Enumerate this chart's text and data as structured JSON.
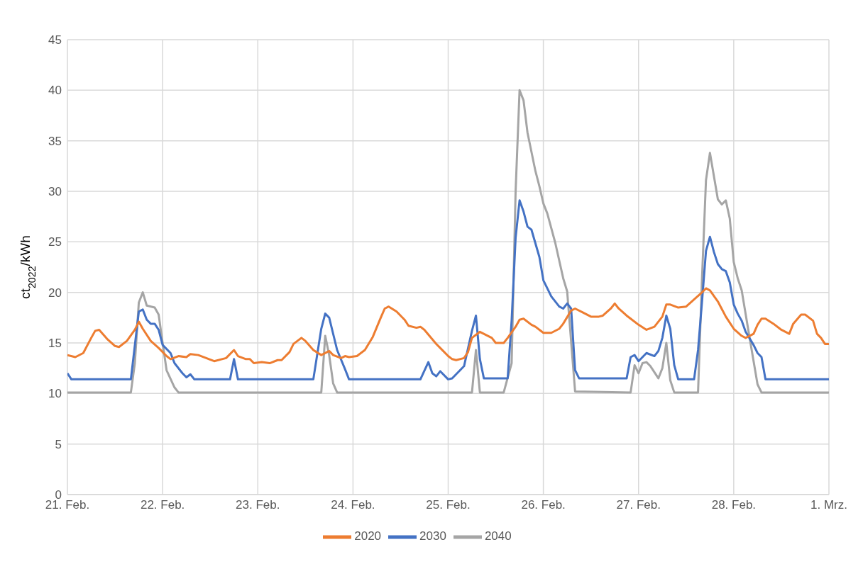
{
  "chart_data": {
    "type": "line",
    "ylabel": "ct$_{2022}$/kWh",
    "xlim": [
      "--02-21",
      "--03-01"
    ],
    "xticks": [
      {
        "value": "--02-21",
        "label": "21. Feb."
      },
      {
        "value": "--02-22",
        "label": "22. Feb."
      },
      {
        "value": "--02-23",
        "label": "23. Feb."
      },
      {
        "value": "--02-24",
        "label": "24. Feb."
      },
      {
        "value": "--02-25",
        "label": "25. Feb."
      },
      {
        "value": "--02-26",
        "label": "26. Feb."
      },
      {
        "value": "--02-27",
        "label": "27. Feb."
      },
      {
        "value": "--02-28",
        "label": "28. Feb."
      },
      {
        "value": "--03-01",
        "label": "1. Mrz."
      }
    ],
    "ylim": [
      0,
      45
    ],
    "yticks": [
      0,
      5,
      10,
      15,
      20,
      25,
      30,
      35,
      40,
      45
    ],
    "grid": true,
    "legend": "bottom",
    "marker": "none",
    "line_style": "solid",
    "series": [
      {
        "name": "2040",
        "color": "#a5a5a5",
        "x": [
          "--02-21T00:00",
          "--02-21T16:00",
          "--02-21T17:00",
          "--02-21T18:00",
          "--02-21T19:00",
          "--02-21T20:00",
          "--02-21T22:00",
          "--02-21T23:00",
          "--02-22T00:00",
          "--02-22T01:00",
          "--02-22T03:00",
          "--02-22T04:00",
          "--02-23T16:00",
          "--02-23T17:00",
          "--02-23T18:00",
          "--02-23T19:00",
          "--02-23T20:00",
          "--02-25T06:00",
          "--02-25T07:00",
          "--02-25T08:00",
          "--02-25T14:00",
          "--02-25T16:00",
          "--02-25T17:00",
          "--02-25T18:00",
          "--02-25T19:00",
          "--02-25T20:00",
          "--02-25T22:00",
          "--02-25T23:00",
          "--02-26T00:00",
          "--02-26T01:00",
          "--02-26T03:00",
          "--02-26T05:00",
          "--02-26T06:00",
          "--02-26T08:00",
          "--02-26T22:00",
          "--02-26T23:00",
          "--02-27T00:00",
          "--02-27T01:00",
          "--02-27T02:00",
          "--02-27T03:00",
          "--02-27T05:00",
          "--02-27T06:00",
          "--02-27T07:00",
          "--02-27T08:00",
          "--02-27T09:00",
          "--02-27T15:00",
          "--02-27T16:00",
          "--02-27T17:00",
          "--02-27T18:00",
          "--02-27T20:00",
          "--02-27T21:00",
          "--02-27T22:00",
          "--02-27T23:00",
          "--02-28T00:00",
          "--02-28T01:00",
          "--02-28T02:00",
          "--02-28T04:00",
          "--02-28T06:00",
          "--02-28T07:00",
          "--03-01T00:00"
        ],
        "values": [
          10.1,
          10.1,
          13,
          19,
          20,
          18.7,
          18.5,
          17.8,
          15,
          12.3,
          10.6,
          10.1,
          10.1,
          15.7,
          13.8,
          11,
          10.1,
          10.1,
          14.3,
          10.1,
          10.1,
          13,
          30,
          40,
          39,
          35.8,
          32,
          30.5,
          28.8,
          27.8,
          24.9,
          21.4,
          20.1,
          10.2,
          10.1,
          12.8,
          12,
          13,
          13.1,
          12.7,
          11.5,
          12.5,
          15,
          11.3,
          10.1,
          10.1,
          21.4,
          31.1,
          33.8,
          29.2,
          28.7,
          29.1,
          27.3,
          23,
          21.4,
          20.2,
          15.5,
          10.9,
          10.1,
          10.1
        ]
      },
      {
        "name": "2030",
        "color": "#4472c4",
        "x": [
          "--02-21T00:00",
          "--02-21T01:00",
          "--02-21T16:00",
          "--02-21T18:00",
          "--02-21T19:00",
          "--02-21T20:00",
          "--02-21T21:00",
          "--02-21T22:00",
          "--02-21T23:00",
          "--02-22T00:00",
          "--02-22T02:00",
          "--02-22T03:00",
          "--02-22T05:00",
          "--02-22T06:00",
          "--02-22T07:00",
          "--02-22T08:00",
          "--02-22T17:00",
          "--02-22T18:00",
          "--02-22T19:00",
          "--02-23T14:00",
          "--02-23T16:00",
          "--02-23T17:00",
          "--02-23T18:00",
          "--02-23T20:00",
          "--02-23T22:00",
          "--02-23T23:00",
          "--02-24T17:00",
          "--02-24T19:00",
          "--02-24T20:00",
          "--02-24T21:00",
          "--02-24T22:00",
          "--02-25T00:00",
          "--02-25T01:00",
          "--02-25T04:00",
          "--02-25T06:00",
          "--02-25T07:00",
          "--02-25T08:00",
          "--02-25T09:00",
          "--02-25T15:00",
          "--02-25T16:00",
          "--02-25T17:00",
          "--02-25T18:00",
          "--02-25T19:00",
          "--02-25T20:00",
          "--02-25T21:00",
          "--02-25T23:00",
          "--02-26T00:00",
          "--02-26T02:00",
          "--02-26T04:00",
          "--02-26T05:00",
          "--02-26T06:00",
          "--02-26T07:00",
          "--02-26T08:00",
          "--02-26T09:00",
          "--02-26T21:00",
          "--02-26T22:00",
          "--02-26T23:00",
          "--02-27T00:00",
          "--02-27T02:00",
          "--02-27T04:00",
          "--02-27T05:00",
          "--02-27T06:00",
          "--02-27T07:00",
          "--02-27T08:00",
          "--02-27T09:00",
          "--02-27T10:00",
          "--02-27T14:00",
          "--02-27T15:00",
          "--02-27T16:00",
          "--02-27T17:00",
          "--02-27T18:00",
          "--02-27T19:00",
          "--02-27T20:00",
          "--02-27T21:00",
          "--02-27T22:00",
          "--02-27T23:00",
          "--02-28T00:00",
          "--02-28T01:00",
          "--02-28T02:00",
          "--02-28T03:00",
          "--02-28T05:00",
          "--02-28T06:00",
          "--02-28T07:00",
          "--02-28T08:00",
          "--03-01T00:00"
        ],
        "values": [
          12,
          11.4,
          11.4,
          18.1,
          18.3,
          17.3,
          16.9,
          16.9,
          16.3,
          14.8,
          14,
          13,
          12,
          11.6,
          11.9,
          11.4,
          11.4,
          13.4,
          11.4,
          11.4,
          16.4,
          17.9,
          17.5,
          14.3,
          12.4,
          11.4,
          11.4,
          13.1,
          12,
          11.7,
          12.2,
          11.4,
          11.5,
          12.7,
          16.2,
          17.7,
          13.4,
          11.5,
          11.5,
          17.2,
          25.4,
          29.1,
          28,
          26.5,
          26.2,
          23.5,
          21.2,
          19.6,
          18.6,
          18.4,
          18.9,
          18.4,
          12.3,
          11.5,
          11.5,
          13.6,
          13.8,
          13.2,
          14,
          13.7,
          14.2,
          15.5,
          17.7,
          16.4,
          12.8,
          11.4,
          11.4,
          14.3,
          19.1,
          24.1,
          25.5,
          24,
          22.8,
          22.3,
          22.1,
          21,
          18.8,
          17.9,
          17.2,
          16.1,
          14.8,
          14,
          13.6,
          11.4,
          11.4
        ]
      },
      {
        "name": "2020",
        "color": "#ed7d31",
        "x": [
          "--02-21T00:00",
          "--02-21T02:00",
          "--02-21T04:00",
          "--02-21T06:00",
          "--02-21T07:00",
          "--02-21T08:00",
          "--02-21T10:00",
          "--02-21T12:00",
          "--02-21T13:00",
          "--02-21T15:00",
          "--02-21T17:00",
          "--02-21T18:00",
          "--02-21T19:00",
          "--02-21T21:00",
          "--02-21T23:00",
          "--02-22T01:00",
          "--02-22T02:00",
          "--02-22T04:00",
          "--02-22T06:00",
          "--02-22T07:00",
          "--02-22T09:00",
          "--02-22T11:00",
          "--02-22T13:00",
          "--02-22T16:00",
          "--02-22T18:00",
          "--02-22T19:00",
          "--02-22T21:00",
          "--02-22T22:00",
          "--02-22T23:00",
          "--02-23T01:00",
          "--02-23T03:00",
          "--02-23T05:00",
          "--02-23T06:00",
          "--02-23T08:00",
          "--02-23T09:00",
          "--02-23T11:00",
          "--02-23T12:00",
          "--02-23T14:00",
          "--02-23T16:00",
          "--02-23T18:00",
          "--02-23T19:00",
          "--02-23T21:00",
          "--02-23T22:00",
          "--02-23T23:00",
          "--02-24T01:00",
          "--02-24T03:00",
          "--02-24T05:00",
          "--02-24T07:00",
          "--02-24T08:00",
          "--02-24T09:00",
          "--02-24T11:00",
          "--02-24T13:00",
          "--02-24T14:00",
          "--02-24T16:00",
          "--02-24T17:00",
          "--02-24T18:00",
          "--02-24T21:00",
          "--02-24T22:00",
          "--02-25T00:00",
          "--02-25T01:00",
          "--02-25T02:00",
          "--02-25T04:00",
          "--02-25T05:00",
          "--02-25T06:00",
          "--02-25T08:00",
          "--02-25T11:00",
          "--02-25T12:00",
          "--02-25T14:00",
          "--02-25T15:00",
          "--02-25T17:00",
          "--02-25T18:00",
          "--02-25T19:00",
          "--02-25T21:00",
          "--02-25T22:00",
          "--02-26T00:00",
          "--02-26T02:00",
          "--02-26T04:00",
          "--02-26T05:00",
          "--02-26T07:00",
          "--02-26T08:00",
          "--02-26T10:00",
          "--02-26T12:00",
          "--02-26T14:00",
          "--02-26T15:00",
          "--02-26T17:00",
          "--02-26T18:00",
          "--02-26T19:00",
          "--02-26T21:00",
          "--02-26T22:00",
          "--02-27T00:00",
          "--02-27T02:00",
          "--02-27T04:00",
          "--02-27T06:00",
          "--02-27T07:00",
          "--02-27T08:00",
          "--02-27T10:00",
          "--02-27T12:00",
          "--02-27T14:00",
          "--02-27T16:00",
          "--02-27T17:00",
          "--02-27T18:00",
          "--02-27T20:00",
          "--02-27T22:00",
          "--02-28T00:00",
          "--02-28T02:00",
          "--02-28T03:00",
          "--02-28T05:00",
          "--02-28T06:00",
          "--02-28T07:00",
          "--02-28T08:00",
          "--02-28T10:00",
          "--02-28T12:00",
          "--02-28T14:00",
          "--02-28T15:00",
          "--02-28T17:00",
          "--02-28T18:00",
          "--02-28T20:00",
          "--02-28T21:00",
          "--02-28T22:00",
          "--02-28T23:00",
          "--03-01T00:00"
        ],
        "values": [
          13.8,
          13.6,
          14,
          15.5,
          16.2,
          16.3,
          15.4,
          14.7,
          14.6,
          15.2,
          16.3,
          17.1,
          16.4,
          15.2,
          14.5,
          13.7,
          13.4,
          13.7,
          13.6,
          13.9,
          13.8,
          13.5,
          13.2,
          13.5,
          14.3,
          13.7,
          13.4,
          13.4,
          13,
          13.1,
          13,
          13.3,
          13.3,
          14.1,
          14.9,
          15.5,
          15.2,
          14.3,
          13.8,
          14.2,
          13.8,
          13.5,
          13.7,
          13.6,
          13.7,
          14.3,
          15.6,
          17.5,
          18.4,
          18.6,
          18.1,
          17.3,
          16.7,
          16.5,
          16.6,
          16.3,
          14.9,
          14.5,
          13.7,
          13.4,
          13.3,
          13.5,
          14.1,
          15.5,
          16.1,
          15.5,
          15,
          15,
          15.5,
          16.6,
          17.3,
          17.4,
          16.8,
          16.6,
          16,
          16,
          16.4,
          16.9,
          18.2,
          18.4,
          18,
          17.6,
          17.6,
          17.7,
          18.4,
          18.9,
          18.4,
          17.7,
          17.4,
          16.8,
          16.3,
          16.6,
          17.6,
          18.8,
          18.8,
          18.5,
          18.6,
          19.3,
          20,
          20.4,
          20.2,
          19.1,
          17.6,
          16.4,
          15.7,
          15.5,
          15.9,
          16.8,
          17.4,
          17.4,
          16.9,
          16.3,
          15.9,
          16.9,
          17.8,
          17.8,
          17.2,
          15.9,
          15.5,
          14.9,
          14.9
        ]
      }
    ]
  }
}
